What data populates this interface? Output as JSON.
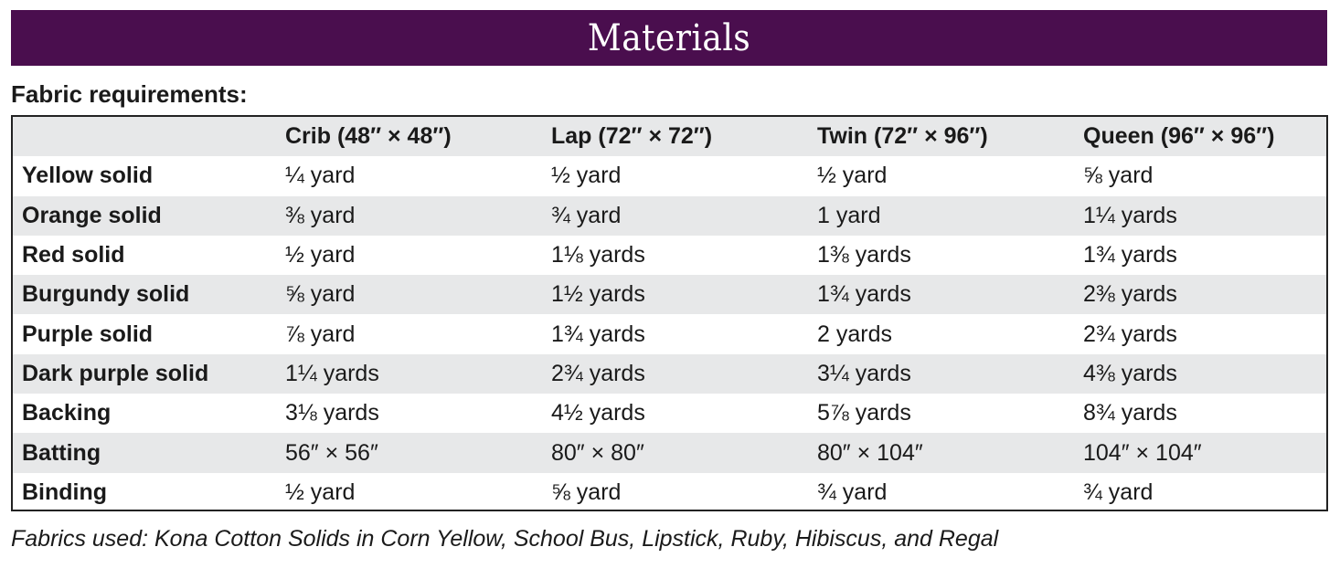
{
  "banner": {
    "title": "Materials"
  },
  "section_label": "Fabric requirements:",
  "table": {
    "headers": [
      "",
      "Crib (48″ × 48″)",
      "Lap (72″ × 72″)",
      "Twin (72″ × 96″)",
      "Queen (96″ × 96″)"
    ],
    "rows": [
      [
        "Yellow solid",
        "¼ yard",
        "½ yard",
        "½ yard",
        "⅝ yard"
      ],
      [
        "Orange solid",
        "⅜ yard",
        "¾ yard",
        "1 yard",
        "1¼ yards"
      ],
      [
        "Red solid",
        "½ yard",
        "1⅛ yards",
        "1⅜ yards",
        "1¾ yards"
      ],
      [
        "Burgundy solid",
        "⅝ yard",
        "1½ yards",
        "1¾ yards",
        "2⅜ yards"
      ],
      [
        "Purple solid",
        "⅞ yard",
        "1¾ yards",
        "2 yards",
        "2¾ yards"
      ],
      [
        "Dark purple solid",
        "1¼ yards",
        "2¾ yards",
        "3¼ yards",
        "4⅜ yards"
      ],
      [
        "Backing",
        "3⅛ yards",
        "4½ yards",
        "5⅞ yards",
        "8¾ yards"
      ],
      [
        "Batting",
        "56″ × 56″",
        "80″ × 80″",
        "80″ × 104″",
        "104″ × 104″"
      ],
      [
        "Binding",
        "½ yard",
        "⅝ yard",
        "¾ yard",
        "¾ yard"
      ]
    ]
  },
  "footnote": "Fabrics used: Kona Cotton Solids in Corn Yellow, School Bus, Lipstick, Ruby, Hibiscus, and Regal",
  "colors": {
    "banner_bg": "#4a0e4e",
    "row_shade": "#e7e8e9"
  }
}
